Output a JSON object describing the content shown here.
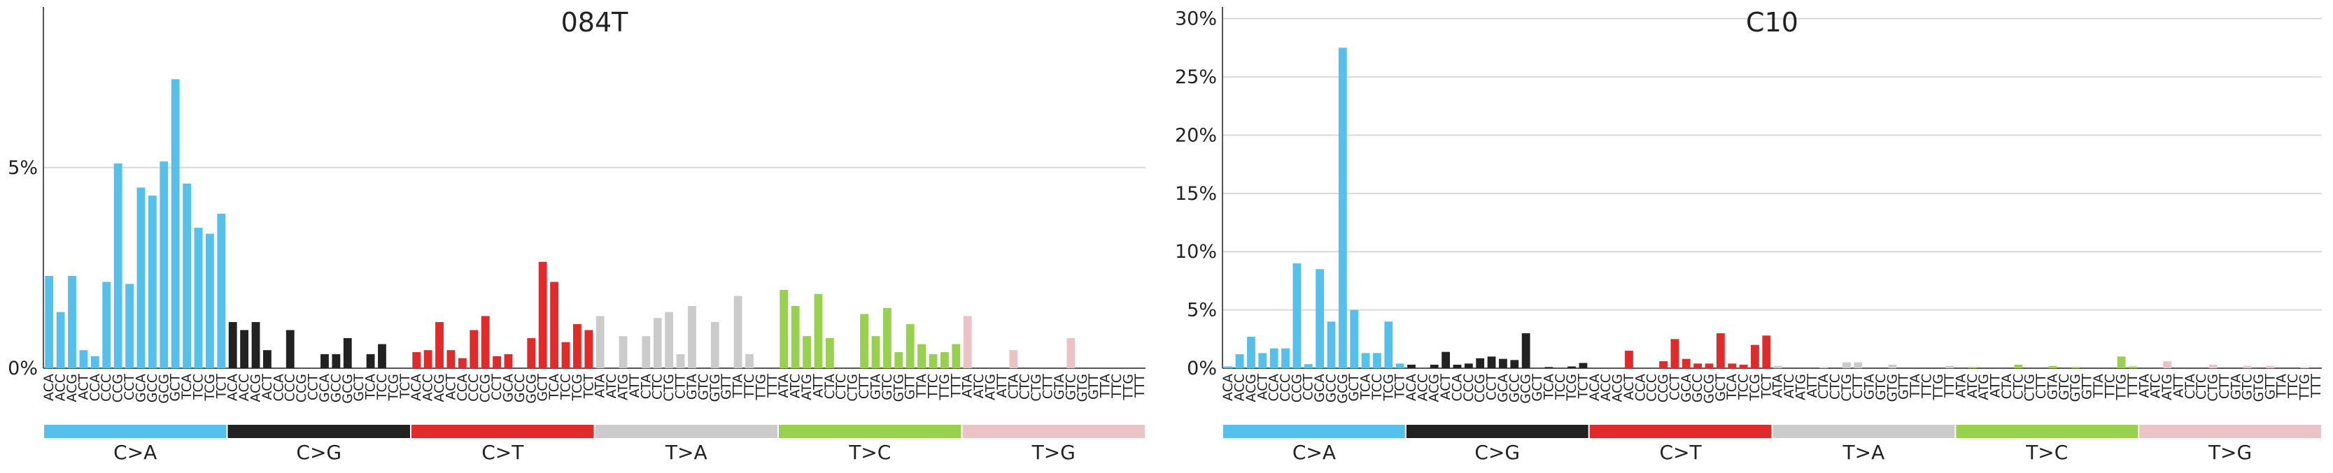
{
  "colors": {
    "C>A": "#55c0ec",
    "C>G": "#222222",
    "C>T": "#e22a2a",
    "T>A": "#cbcbcb",
    "T>C": "#98d050",
    "T>G": "#ebc2c5",
    "grid": "#d9d9d9",
    "axis": "#555555"
  },
  "chart_data": [
    {
      "type": "bar",
      "title": "084T",
      "ylim": [
        0,
        9
      ],
      "yticks": [
        0,
        5
      ],
      "ytick_labels": [
        "0%",
        "5%"
      ],
      "grid": true,
      "mutation_types": [
        "C>A",
        "C>G",
        "C>T",
        "T>A",
        "T>C",
        "T>G"
      ],
      "categories": [
        "ACA",
        "ACC",
        "ACG",
        "ACT",
        "CCA",
        "CCC",
        "CCG",
        "CCT",
        "GCA",
        "GCC",
        "GCG",
        "GCT",
        "TCA",
        "TCC",
        "TCG",
        "TCT",
        "ACA",
        "ACC",
        "ACG",
        "ACT",
        "CCA",
        "CCC",
        "CCG",
        "CCT",
        "GCA",
        "GCC",
        "GCG",
        "GCT",
        "TCA",
        "TCC",
        "TCG",
        "TCT",
        "ACA",
        "ACC",
        "ACG",
        "ACT",
        "CCA",
        "CCC",
        "CCG",
        "CCT",
        "GCA",
        "GCC",
        "GCG",
        "GCT",
        "TCA",
        "TCC",
        "TCG",
        "TCT",
        "ATA",
        "ATC",
        "ATG",
        "ATT",
        "CTA",
        "CTC",
        "CTG",
        "CTT",
        "GTA",
        "GTC",
        "GTG",
        "GTT",
        "TTA",
        "TTC",
        "TTG",
        "TTT",
        "ATA",
        "ATC",
        "ATG",
        "ATT",
        "CTA",
        "CTC",
        "CTG",
        "CTT",
        "GTA",
        "GTC",
        "GTG",
        "GTT",
        "TTA",
        "TTC",
        "TTG",
        "TTT",
        "ATA",
        "ATC",
        "ATG",
        "ATT",
        "CTA",
        "CTC",
        "CTG",
        "CTT",
        "GTA",
        "GTC",
        "GTG",
        "GTT",
        "TTA",
        "TTC",
        "TTG",
        "TTT"
      ],
      "values": [
        2.3,
        1.4,
        2.3,
        0.45,
        0.3,
        2.15,
        5.1,
        2.1,
        4.5,
        4.3,
        5.15,
        7.2,
        4.6,
        3.5,
        3.35,
        3.85,
        1.15,
        0.95,
        1.15,
        0.45,
        0,
        0.95,
        0,
        0,
        0.35,
        0.35,
        0.75,
        0,
        0.35,
        0.6,
        0,
        0,
        0.4,
        0.45,
        1.15,
        0.45,
        0.25,
        0.95,
        1.3,
        0.3,
        0.35,
        0,
        0.75,
        2.65,
        2.15,
        0.65,
        1.1,
        0.95,
        1.3,
        0,
        0.8,
        0,
        0.8,
        1.25,
        1.4,
        0.35,
        1.55,
        0,
        1.15,
        0,
        1.8,
        0.35,
        0,
        0,
        1.95,
        1.55,
        0.8,
        1.85,
        0.75,
        0,
        0,
        1.35,
        0.8,
        1.5,
        0.4,
        1.1,
        0.6,
        0.35,
        0.4,
        0.6,
        1.3,
        0,
        0,
        0,
        0.45,
        0,
        0,
        0,
        0,
        0.75,
        0,
        0,
        0,
        0,
        0,
        0
      ]
    },
    {
      "type": "bar",
      "title": "C10",
      "ylim": [
        0,
        31
      ],
      "yticks": [
        0,
        5,
        10,
        15,
        20,
        25,
        30
      ],
      "ytick_labels": [
        "0%",
        "5%",
        "10%",
        "15%",
        "20%",
        "25%",
        "30%"
      ],
      "grid": true,
      "mutation_types": [
        "C>A",
        "C>G",
        "C>T",
        "T>A",
        "T>C",
        "T>G"
      ],
      "categories": [
        "ACA",
        "ACC",
        "ACG",
        "ACT",
        "CCA",
        "CCC",
        "CCG",
        "CCT",
        "GCA",
        "GCC",
        "GCG",
        "GCT",
        "TCA",
        "TCC",
        "TCG",
        "TCT",
        "ACA",
        "ACC",
        "ACG",
        "ACT",
        "CCA",
        "CCC",
        "CCG",
        "CCT",
        "GCA",
        "GCC",
        "GCG",
        "GCT",
        "TCA",
        "TCC",
        "TCG",
        "TCT",
        "ACA",
        "ACC",
        "ACG",
        "ACT",
        "CCA",
        "CCC",
        "CCG",
        "CCT",
        "GCA",
        "GCC",
        "GCG",
        "GCT",
        "TCA",
        "TCC",
        "TCG",
        "TCT",
        "ATA",
        "ATC",
        "ATG",
        "ATT",
        "CTA",
        "CTC",
        "CTG",
        "CTT",
        "GTA",
        "GTC",
        "GTG",
        "GTT",
        "TTA",
        "TTC",
        "TTG",
        "TTT",
        "ATA",
        "ATC",
        "ATG",
        "ATT",
        "CTA",
        "CTC",
        "CTG",
        "CTT",
        "GTA",
        "GTC",
        "GTG",
        "GTT",
        "TTA",
        "TTC",
        "TTG",
        "TTT",
        "ATA",
        "ATC",
        "ATG",
        "ATT",
        "CTA",
        "CTC",
        "CTG",
        "CTT",
        "GTA",
        "GTC",
        "GTG",
        "GTT",
        "TTA",
        "TTC",
        "TTG",
        "TTT"
      ],
      "values": [
        0.15,
        1.2,
        2.7,
        1.3,
        1.7,
        1.7,
        9.0,
        0.35,
        8.5,
        4.0,
        27.5,
        5.0,
        1.3,
        1.3,
        4.0,
        0.4,
        0.3,
        0,
        0.3,
        1.4,
        0.3,
        0.4,
        0.85,
        1.0,
        0.8,
        0.7,
        3.0,
        0,
        0.1,
        0,
        0.15,
        0.45,
        0,
        0,
        0,
        1.5,
        0,
        0,
        0.6,
        2.5,
        0.8,
        0.4,
        0.4,
        3.0,
        0.4,
        0.3,
        2.0,
        2.8,
        0.2,
        0,
        0,
        0,
        0.1,
        0,
        0.5,
        0.5,
        0,
        0,
        0.3,
        0,
        0,
        0,
        0,
        0.2,
        0,
        0.1,
        0,
        0,
        0,
        0.3,
        0,
        0,
        0.2,
        0,
        0.1,
        0,
        0,
        0,
        1.0,
        0.15,
        0,
        0,
        0.6,
        0,
        0,
        0,
        0.3,
        0,
        0,
        0.2,
        0,
        0.2,
        0,
        0,
        0.1,
        0
      ]
    }
  ]
}
